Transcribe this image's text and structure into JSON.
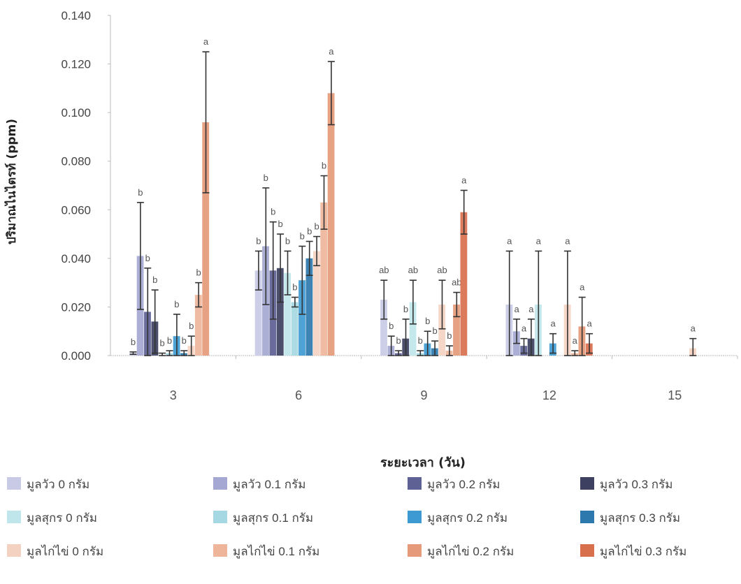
{
  "chart_data": {
    "type": "bar",
    "title": "",
    "xlabel": "ระยะเวลา (วัน)",
    "ylabel": "ปริมาณไนไตรท์ (ppm)",
    "ylim": [
      0,
      0.14
    ],
    "yticks": [
      "0.000",
      "0.020",
      "0.040",
      "0.060",
      "0.080",
      "0.100",
      "0.120",
      "0.140"
    ],
    "categories": [
      "3",
      "6",
      "9",
      "12",
      "15"
    ],
    "legend_position": "bottom",
    "series": [
      {
        "name": "มูลวัว 0 กรัม",
        "color": "#c9cbe6",
        "values": [
          0.001,
          0.035,
          0.023,
          0.021,
          0.0
        ],
        "errors": [
          0.0005,
          0.008,
          0.008,
          0.022,
          0.0
        ],
        "letters": [
          "b",
          "b",
          "ab",
          "a",
          ""
        ]
      },
      {
        "name": "มูลวัว 0.1 กรัม",
        "color": "#a4a8d2",
        "values": [
          0.041,
          0.045,
          0.004,
          0.01,
          0.0
        ],
        "errors": [
          0.022,
          0.024,
          0.004,
          0.005,
          0.0
        ],
        "letters": [
          "b",
          "b",
          "b",
          "a",
          ""
        ]
      },
      {
        "name": "มูลวัว 0.2 กรัม",
        "color": "#5d6194",
        "values": [
          0.018,
          0.035,
          0.001,
          0.004,
          0.0
        ],
        "errors": [
          0.018,
          0.02,
          0.001,
          0.003,
          0.0
        ],
        "letters": [
          "b",
          "b",
          "b",
          "a",
          ""
        ]
      },
      {
        "name": "มูลวัว 0.3 กรัม",
        "color": "#3d4060",
        "values": [
          0.014,
          0.036,
          0.007,
          0.007,
          0.0
        ],
        "errors": [
          0.013,
          0.014,
          0.008,
          0.008,
          0.0
        ],
        "letters": [
          "b",
          "b",
          "b",
          "a",
          ""
        ]
      },
      {
        "name": "มูลสุกร 0 กรัม",
        "color": "#bfe6ea",
        "values": [
          0.0,
          0.034,
          0.022,
          0.021,
          0.0
        ],
        "errors": [
          0.001,
          0.009,
          0.009,
          0.022,
          0.0
        ],
        "letters": [
          "b",
          "b",
          "ab",
          "a",
          ""
        ]
      },
      {
        "name": "มูลสุกร 0.1 กรัม",
        "color": "#a5d8e2",
        "values": [
          0.001,
          0.022,
          0.001,
          0.0,
          0.0
        ],
        "errors": [
          0.001,
          0.002,
          0.001,
          0.0,
          0.0
        ],
        "letters": [
          "b",
          "b",
          "b",
          "",
          ""
        ]
      },
      {
        "name": "มูลสุกร 0.2 กรัม",
        "color": "#3e9ad2",
        "values": [
          0.008,
          0.031,
          0.005,
          0.005,
          0.0
        ],
        "errors": [
          0.009,
          0.014,
          0.005,
          0.004,
          0.0
        ],
        "letters": [
          "b",
          "b",
          "b",
          "a",
          ""
        ]
      },
      {
        "name": "มูลสุกร 0.3 กรัม",
        "color": "#2d79ae",
        "values": [
          0.001,
          0.04,
          0.003,
          0.0,
          0.0
        ],
        "errors": [
          0.001,
          0.007,
          0.003,
          0.0,
          0.0
        ],
        "letters": [
          "b",
          "b",
          "b",
          "",
          ""
        ]
      },
      {
        "name": "มูลไก่ไข่ 0 กรัม",
        "color": "#f4d2c2",
        "values": [
          0.004,
          0.043,
          0.021,
          0.021,
          0.003
        ],
        "errors": [
          0.004,
          0.006,
          0.01,
          0.022,
          0.004
        ],
        "letters": [
          "b",
          "b",
          "ab",
          "a",
          "a"
        ]
      },
      {
        "name": "มูลไก่ไข่ 0.1 กรัม",
        "color": "#eeb59a",
        "values": [
          0.025,
          0.063,
          0.002,
          0.001,
          0.0
        ],
        "errors": [
          0.005,
          0.011,
          0.002,
          0.001,
          0.0
        ],
        "letters": [
          "b",
          "b",
          "b",
          "a",
          ""
        ]
      },
      {
        "name": "มูลไก่ไข่ 0.2 กรัม",
        "color": "#e59a7a",
        "values": [
          0.096,
          0.108,
          0.021,
          0.012,
          0.0
        ],
        "errors": [
          0.029,
          0.013,
          0.005,
          0.012,
          0.0
        ],
        "letters": [
          "a",
          "a",
          "ab",
          "a",
          ""
        ]
      },
      {
        "name": "มูลไก่ไข่ 0.3 กรัม",
        "color": "#d9704d",
        "values": [
          0.0,
          0.0,
          0.059,
          0.005,
          0.0
        ],
        "errors": [
          0.0,
          0.0,
          0.009,
          0.004,
          0.0
        ],
        "letters": [
          "",
          "",
          "a",
          "a",
          ""
        ]
      }
    ]
  }
}
